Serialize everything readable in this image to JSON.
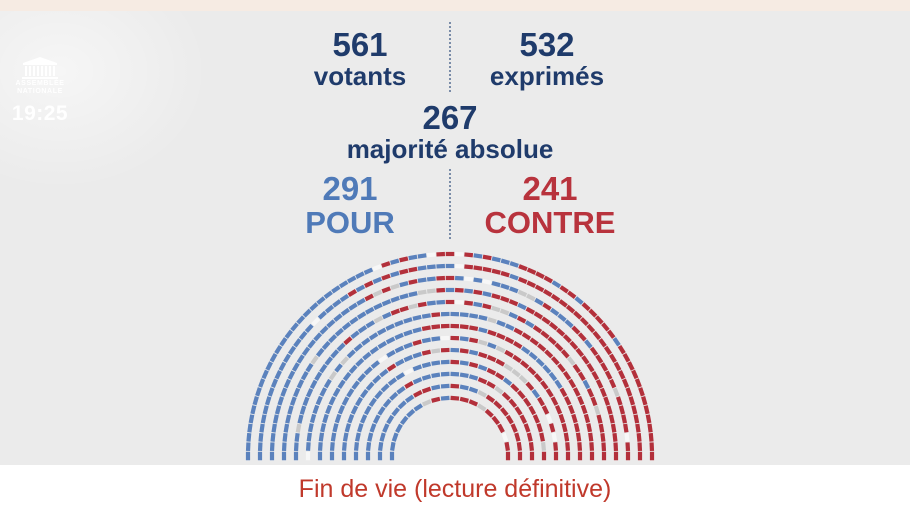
{
  "logo": {
    "line1": "ASSEMBLÉE",
    "line2": "NATIONALE",
    "time": "19:25"
  },
  "votants": {
    "value": "561",
    "label": "votants"
  },
  "exprimes": {
    "value": "532",
    "label": "exprimés"
  },
  "majorite": {
    "value": "267",
    "label": "majorité absolue"
  },
  "pour": {
    "value": "291",
    "label": "POUR"
  },
  "contre": {
    "value": "241",
    "label": "CONTRE"
  },
  "footer": {
    "title": "Fin de vie (lecture définitive)"
  },
  "colors": {
    "pour": "#5b82bd",
    "contre": "#b3303b",
    "abstention": "#c9c9c9",
    "absent": "#f7f7f7",
    "navy": "#1f3b6b"
  },
  "seats": {
    "pour": 291,
    "contre": 241,
    "abstention": 29,
    "non_votants": 16
  }
}
